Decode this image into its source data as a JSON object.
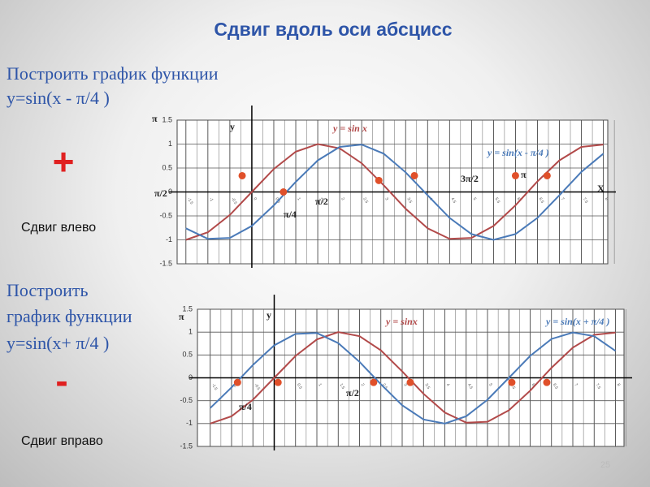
{
  "title": "Сдвиг вдоль оси абсцисс",
  "section1": {
    "task": "Построить график функции",
    "formula": "y=sin(x - π/4 )",
    "sign": "+",
    "shift": "Сдвиг влево"
  },
  "section2": {
    "task_line1": "Построить",
    "task_line2": "график функции",
    "formula": "y=sin(x+ π/4 )",
    "sign": "-",
    "shift": "Сдвиг вправо"
  },
  "slide_number": "25",
  "chart_data": [
    {
      "type": "line",
      "x": [
        -1.5,
        -1.0,
        -0.5,
        0,
        0.5,
        1.0,
        1.5,
        2.0,
        2.5,
        3.0,
        3.5,
        4.0,
        4.5,
        5.0,
        5.5,
        6.0,
        6.5,
        7.0,
        7.5,
        8.0
      ],
      "series": [
        {
          "name": "y = sin x",
          "color": "#b24a4a",
          "values": [
            -1.0,
            -0.84,
            -0.48,
            0,
            0.48,
            0.84,
            1.0,
            0.91,
            0.6,
            0.14,
            -0.35,
            -0.76,
            -0.98,
            -0.96,
            -0.71,
            -0.28,
            0.22,
            0.66,
            0.94,
            0.99
          ]
        },
        {
          "name": "y = sin(x - π/4 )",
          "color": "#4a7ab8",
          "values": [
            -0.76,
            -0.98,
            -0.96,
            -0.71,
            -0.28,
            0.21,
            0.66,
            0.94,
            0.99,
            0.8,
            0.41,
            -0.07,
            -0.54,
            -0.88,
            -1.0,
            -0.88,
            -0.54,
            -0.07,
            0.42,
            0.8
          ]
        }
      ],
      "markers": {
        "color": "#e0502a",
        "x": [
          -0.22,
          0.72,
          2.89,
          3.7,
          6.0,
          6.72
        ],
        "y": [
          0.34,
          0,
          0.24,
          0.34,
          0.34,
          0.34
        ]
      },
      "xlim": [
        -1.7,
        8.1
      ],
      "ylim": [
        -1.5,
        1.5
      ],
      "xticks": [
        -1.5,
        -1,
        -0.5,
        0,
        0.5,
        1,
        1.5,
        2,
        2.5,
        3,
        3.5,
        4,
        4.5,
        5,
        5.5,
        6,
        6.5,
        7,
        7.5,
        8
      ],
      "yticks": [
        1.5,
        1,
        0.5,
        0,
        -0.5,
        -1,
        -1.5
      ],
      "annotations": [
        "y",
        "X",
        "π",
        "π/2",
        "π/4",
        "π/2",
        "3π/2",
        "π"
      ]
    },
    {
      "type": "line",
      "x": [
        -1.5,
        -1.0,
        -0.5,
        0,
        0.5,
        1.0,
        1.5,
        2.0,
        2.5,
        3.0,
        3.5,
        4.0,
        4.5,
        5.0,
        5.5,
        6.0,
        6.5,
        7.0,
        7.5,
        8.0
      ],
      "series": [
        {
          "name": "y = sinx",
          "color": "#b24a4a",
          "values": [
            -1.0,
            -0.84,
            -0.48,
            0,
            0.48,
            0.84,
            1.0,
            0.91,
            0.6,
            0.14,
            -0.35,
            -0.76,
            -0.98,
            -0.96,
            -0.71,
            -0.28,
            0.22,
            0.66,
            0.94,
            0.99
          ]
        },
        {
          "name": "y = sin(x + π/4 )",
          "color": "#4a7ab8",
          "values": [
            -0.66,
            -0.21,
            0.28,
            0.71,
            0.96,
            0.98,
            0.76,
            0.35,
            -0.14,
            -0.6,
            -0.91,
            -1.0,
            -0.84,
            -0.48,
            0.0,
            0.48,
            0.85,
            0.99,
            0.91,
            0.59
          ]
        }
      ],
      "markers": {
        "color": "#e0502a",
        "x": [
          -0.86,
          0.09,
          2.33,
          3.19,
          5.57,
          6.39
        ],
        "y": [
          -0.1,
          -0.1,
          -0.1,
          -0.1,
          -0.1,
          -0.1
        ]
      },
      "xlim": [
        -1.8,
        8.2
      ],
      "ylim": [
        -1.5,
        1.5
      ],
      "xticks": [
        -1.5,
        -1,
        -0.5,
        0,
        0.5,
        1,
        1.5,
        2,
        2.5,
        3,
        3.5,
        4,
        4.5,
        5,
        5.5,
        6,
        6.5,
        7,
        7.5,
        8
      ],
      "yticks": [
        1.5,
        1,
        0.5,
        0,
        -0.5,
        -1,
        -1.5
      ],
      "annotations": [
        "y",
        "π",
        "π/4",
        "π/2"
      ]
    }
  ]
}
